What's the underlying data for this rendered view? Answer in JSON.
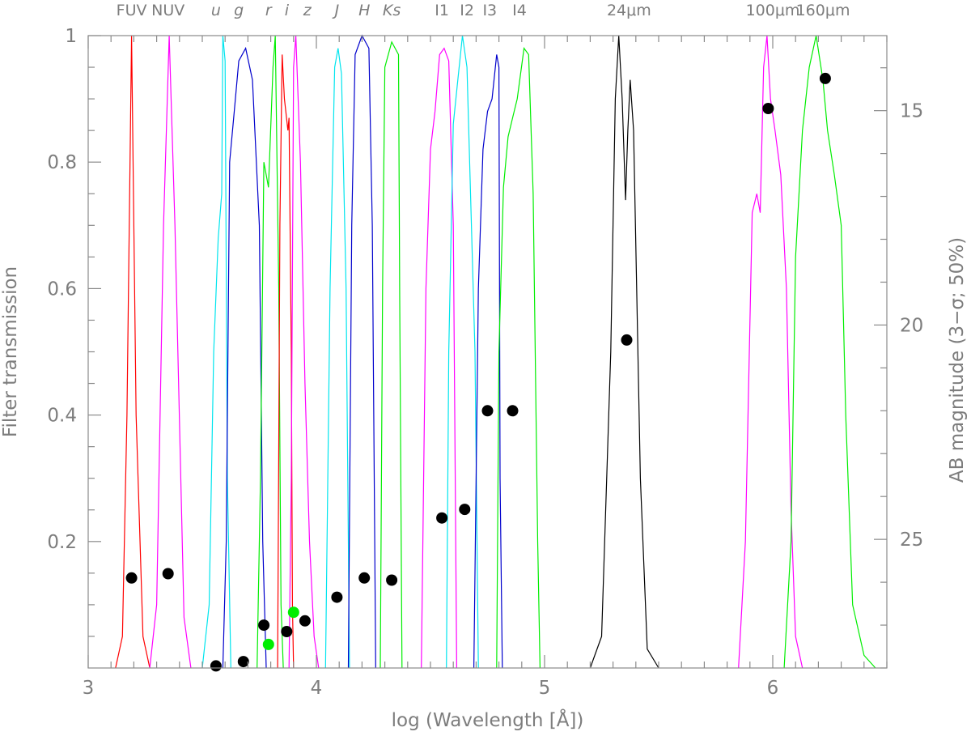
{
  "chart_data": {
    "type": "line",
    "xlabel": "log (Wavelength [Å])",
    "ylabel_left": "Filter transmission",
    "ylabel_right": "AB magnitude (3−σ; 50%)",
    "xlim": [
      3.0,
      6.5
    ],
    "ylim_left": [
      0.0,
      1.0
    ],
    "ylim_right_top_to_bottom": [
      13.25,
      28.0
    ],
    "x_ticks": [
      3,
      4,
      5,
      6
    ],
    "y_ticks_left": [
      0.2,
      0.4,
      0.6,
      0.8,
      1
    ],
    "y_ticks_right": [
      15,
      20,
      25
    ],
    "grid": false,
    "band_labels": [
      {
        "text": "FUV",
        "x": 3.19
      },
      {
        "text": "NUV",
        "x": 3.35
      },
      {
        "text": "u",
        "x": 3.56
      },
      {
        "text": "g",
        "x": 3.66
      },
      {
        "text": "r",
        "x": 3.79
      },
      {
        "text": "i",
        "x": 3.87
      },
      {
        "text": "z",
        "x": 3.96
      },
      {
        "text": "J",
        "x": 4.09
      },
      {
        "text": "H",
        "x": 4.21
      },
      {
        "text": "Ks",
        "x": 4.33
      },
      {
        "text": "I1",
        "x": 4.55
      },
      {
        "text": "I2",
        "x": 4.66
      },
      {
        "text": "I3",
        "x": 4.76
      },
      {
        "text": "I4",
        "x": 4.89
      },
      {
        "text": "24μm",
        "x": 5.37
      },
      {
        "text": "100μm",
        "x": 6.0
      },
      {
        "text": "160μm",
        "x": 6.22
      }
    ],
    "filters": [
      {
        "color": "#ff0000",
        "points": [
          [
            3.12,
            0
          ],
          [
            3.15,
            0.05
          ],
          [
            3.17,
            0.4
          ],
          [
            3.19,
            1.0
          ],
          [
            3.21,
            0.4
          ],
          [
            3.24,
            0.05
          ],
          [
            3.27,
            0
          ]
        ]
      },
      {
        "color": "#ff00ff",
        "points": [
          [
            3.27,
            0
          ],
          [
            3.3,
            0.1
          ],
          [
            3.33,
            0.7
          ],
          [
            3.355,
            1.0
          ],
          [
            3.38,
            0.7
          ],
          [
            3.42,
            0.08
          ],
          [
            3.45,
            0
          ]
        ]
      },
      {
        "color": "#00e5ee",
        "points": [
          [
            3.5,
            0
          ],
          [
            3.53,
            0.1
          ],
          [
            3.55,
            0.5
          ],
          [
            3.57,
            0.68
          ],
          [
            3.585,
            0.75
          ],
          [
            3.59,
            1.0
          ],
          [
            3.6,
            0.96
          ],
          [
            3.61,
            0.3
          ],
          [
            3.625,
            0
          ]
        ]
      },
      {
        "color": "#0000cc",
        "points": [
          [
            3.59,
            0
          ],
          [
            3.605,
            0.2
          ],
          [
            3.62,
            0.8
          ],
          [
            3.64,
            0.88
          ],
          [
            3.66,
            0.96
          ],
          [
            3.69,
            0.98
          ],
          [
            3.72,
            0.93
          ],
          [
            3.75,
            0.7
          ],
          [
            3.765,
            0.2
          ],
          [
            3.78,
            0
          ]
        ]
      },
      {
        "color": "#00ee00",
        "points": [
          [
            3.74,
            0
          ],
          [
            3.755,
            0.3
          ],
          [
            3.77,
            0.8
          ],
          [
            3.79,
            0.76
          ],
          [
            3.81,
            0.95
          ],
          [
            3.82,
            1.0
          ],
          [
            3.835,
            0.6
          ],
          [
            3.845,
            0.1
          ],
          [
            3.855,
            0
          ]
        ]
      },
      {
        "color": "#ff0000",
        "points": [
          [
            3.83,
            0
          ],
          [
            3.84,
            0.7
          ],
          [
            3.85,
            0.97
          ],
          [
            3.86,
            0.9
          ],
          [
            3.875,
            0.85
          ],
          [
            3.88,
            0.87
          ],
          [
            3.89,
            0.5
          ],
          [
            3.895,
            0.1
          ],
          [
            3.9,
            0
          ]
        ]
      },
      {
        "color": "#ff00ff",
        "points": [
          [
            3.88,
            0
          ],
          [
            3.89,
            0.3
          ],
          [
            3.9,
            0.95
          ],
          [
            3.91,
            1.0
          ],
          [
            3.93,
            0.8
          ],
          [
            3.95,
            0.45
          ],
          [
            3.97,
            0.2
          ],
          [
            3.99,
            0.05
          ],
          [
            4.01,
            0
          ]
        ]
      },
      {
        "color": "#00e5ee",
        "points": [
          [
            4.04,
            0
          ],
          [
            4.06,
            0.6
          ],
          [
            4.08,
            0.95
          ],
          [
            4.095,
            0.98
          ],
          [
            4.11,
            0.94
          ],
          [
            4.13,
            0.6
          ],
          [
            4.145,
            0
          ]
        ]
      },
      {
        "color": "#0000cc",
        "points": [
          [
            4.14,
            0
          ],
          [
            4.155,
            0.7
          ],
          [
            4.17,
            0.97
          ],
          [
            4.2,
            1.0
          ],
          [
            4.23,
            0.98
          ],
          [
            4.245,
            0.7
          ],
          [
            4.26,
            0
          ]
        ]
      },
      {
        "color": "#00ee00",
        "points": [
          [
            4.28,
            0
          ],
          [
            4.29,
            0.6
          ],
          [
            4.3,
            0.95
          ],
          [
            4.33,
            0.99
          ],
          [
            4.36,
            0.97
          ],
          [
            4.365,
            0.6
          ],
          [
            4.375,
            0
          ]
        ]
      },
      {
        "color": "#ff00ff",
        "points": [
          [
            4.46,
            0
          ],
          [
            4.48,
            0.6
          ],
          [
            4.5,
            0.82
          ],
          [
            4.52,
            0.88
          ],
          [
            4.54,
            0.97
          ],
          [
            4.56,
            0.98
          ],
          [
            4.58,
            0.96
          ],
          [
            4.6,
            0.7
          ],
          [
            4.615,
            0
          ]
        ]
      },
      {
        "color": "#00e5ee",
        "points": [
          [
            4.57,
            0
          ],
          [
            4.58,
            0.5
          ],
          [
            4.6,
            0.86
          ],
          [
            4.62,
            0.93
          ],
          [
            4.64,
            1.0
          ],
          [
            4.66,
            0.95
          ],
          [
            4.695,
            0.5
          ],
          [
            4.71,
            0
          ]
        ]
      },
      {
        "color": "#0000cc",
        "points": [
          [
            4.69,
            0
          ],
          [
            4.71,
            0.6
          ],
          [
            4.73,
            0.82
          ],
          [
            4.75,
            0.88
          ],
          [
            4.77,
            0.9
          ],
          [
            4.79,
            0.97
          ],
          [
            4.8,
            0.95
          ],
          [
            4.805,
            0.3
          ],
          [
            4.815,
            0
          ]
        ]
      },
      {
        "color": "#00ee00",
        "points": [
          [
            4.79,
            0
          ],
          [
            4.8,
            0.5
          ],
          [
            4.82,
            0.76
          ],
          [
            4.84,
            0.84
          ],
          [
            4.86,
            0.87
          ],
          [
            4.88,
            0.9
          ],
          [
            4.91,
            0.98
          ],
          [
            4.93,
            0.97
          ],
          [
            4.95,
            0.75
          ],
          [
            4.97,
            0.2
          ],
          [
            4.98,
            0
          ]
        ]
      },
      {
        "color": "#000000",
        "points": [
          [
            5.2,
            0
          ],
          [
            5.25,
            0.05
          ],
          [
            5.29,
            0.5
          ],
          [
            5.31,
            0.9
          ],
          [
            5.325,
            1.0
          ],
          [
            5.34,
            0.9
          ],
          [
            5.355,
            0.74
          ],
          [
            5.365,
            0.85
          ],
          [
            5.375,
            0.93
          ],
          [
            5.39,
            0.85
          ],
          [
            5.42,
            0.3
          ],
          [
            5.45,
            0.03
          ],
          [
            5.5,
            0
          ]
        ]
      },
      {
        "color": "#ff00ff",
        "points": [
          [
            5.85,
            0
          ],
          [
            5.88,
            0.2
          ],
          [
            5.91,
            0.72
          ],
          [
            5.93,
            0.75
          ],
          [
            5.945,
            0.72
          ],
          [
            5.96,
            0.95
          ],
          [
            5.975,
            1.0
          ],
          [
            5.99,
            0.9
          ],
          [
            6.01,
            0.85
          ],
          [
            6.035,
            0.78
          ],
          [
            6.06,
            0.6
          ],
          [
            6.08,
            0.25
          ],
          [
            6.1,
            0.05
          ],
          [
            6.13,
            0
          ]
        ]
      },
      {
        "color": "#00ee00",
        "points": [
          [
            6.05,
            0
          ],
          [
            6.08,
            0.2
          ],
          [
            6.1,
            0.65
          ],
          [
            6.13,
            0.85
          ],
          [
            6.16,
            0.95
          ],
          [
            6.19,
            1.0
          ],
          [
            6.22,
            0.93
          ],
          [
            6.24,
            0.85
          ],
          [
            6.27,
            0.78
          ],
          [
            6.3,
            0.7
          ],
          [
            6.32,
            0.4
          ],
          [
            6.35,
            0.1
          ],
          [
            6.4,
            0.02
          ],
          [
            6.45,
            0
          ]
        ]
      }
    ],
    "magnitudes": [
      {
        "x": 3.19,
        "mag": 25.9,
        "color": "#000000"
      },
      {
        "x": 3.35,
        "mag": 25.8,
        "color": "#000000"
      },
      {
        "x": 3.56,
        "mag": 27.95,
        "color": "#000000"
      },
      {
        "x": 3.68,
        "mag": 27.85,
        "color": "#000000"
      },
      {
        "x": 3.77,
        "mag": 27.0,
        "color": "#000000"
      },
      {
        "x": 3.79,
        "mag": 27.45,
        "color": "#00ee00"
      },
      {
        "x": 3.87,
        "mag": 27.15,
        "color": "#000000"
      },
      {
        "x": 3.9,
        "mag": 26.7,
        "color": "#00ee00"
      },
      {
        "x": 3.95,
        "mag": 26.9,
        "color": "#000000"
      },
      {
        "x": 4.09,
        "mag": 26.35,
        "color": "#000000"
      },
      {
        "x": 4.21,
        "mag": 25.9,
        "color": "#000000"
      },
      {
        "x": 4.33,
        "mag": 25.95,
        "color": "#000000"
      },
      {
        "x": 4.55,
        "mag": 24.5,
        "color": "#000000"
      },
      {
        "x": 4.65,
        "mag": 24.3,
        "color": "#000000"
      },
      {
        "x": 4.75,
        "mag": 22.0,
        "color": "#000000"
      },
      {
        "x": 4.86,
        "mag": 22.0,
        "color": "#000000"
      },
      {
        "x": 5.36,
        "mag": 20.35,
        "color": "#000000"
      },
      {
        "x": 5.98,
        "mag": 14.95,
        "color": "#000000"
      },
      {
        "x": 6.23,
        "mag": 14.25,
        "color": "#000000"
      }
    ]
  }
}
